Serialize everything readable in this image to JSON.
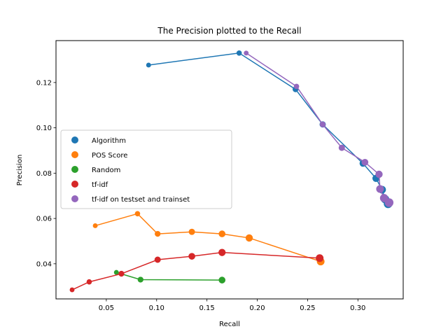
{
  "chart_data": {
    "type": "line",
    "title": "The Precision plotted to the Recall",
    "xlabel": "Recall",
    "ylabel": "Precision",
    "xlim": [
      0.0,
      0.345
    ],
    "ylim": [
      0.0245,
      0.1385
    ],
    "xticks": [
      0.05,
      0.1,
      0.15,
      0.2,
      0.25,
      0.3
    ],
    "xtick_labels": [
      "0.05",
      "0.10",
      "0.15",
      "0.20",
      "0.25",
      "0.30"
    ],
    "yticks": [
      0.04,
      0.06,
      0.08,
      0.1,
      0.12
    ],
    "ytick_labels": [
      "0.04",
      "0.06",
      "0.08",
      "0.10",
      "0.12"
    ],
    "grid": false,
    "legend_position": "center-left",
    "series": [
      {
        "name": "Algorithm",
        "color": "#1f77b4",
        "x": [
          0.092,
          0.182,
          0.238,
          0.265,
          0.305,
          0.318,
          0.324,
          0.327,
          0.33
        ],
        "y": [
          0.1277,
          0.133,
          0.117,
          0.1015,
          0.0843,
          0.0777,
          0.0727,
          0.0685,
          0.0665
        ],
        "sizes": [
          5,
          5.5,
          6,
          6.5,
          7,
          7.5,
          8,
          8.5,
          9
        ]
      },
      {
        "name": "POS Score",
        "color": "#ff7f0e",
        "x": [
          0.039,
          0.081,
          0.101,
          0.135,
          0.165,
          0.192,
          0.263
        ],
        "y": [
          0.0568,
          0.0621,
          0.0532,
          0.0541,
          0.0532,
          0.0514,
          0.041
        ],
        "sizes": [
          5,
          5.5,
          6,
          6.5,
          7,
          7.5,
          8
        ]
      },
      {
        "name": "Random",
        "color": "#2ca02c",
        "x": [
          0.06,
          0.084,
          0.165
        ],
        "y": [
          0.0362,
          0.033,
          0.0328
        ],
        "sizes": [
          5,
          6,
          7
        ]
      },
      {
        "name": "tf-idf",
        "color": "#d62728",
        "x": [
          0.016,
          0.033,
          0.065,
          0.101,
          0.135,
          0.165,
          0.262
        ],
        "y": [
          0.0285,
          0.032,
          0.0356,
          0.0418,
          0.0433,
          0.045,
          0.0425
        ],
        "sizes": [
          5,
          5.5,
          6,
          6.5,
          7,
          7.5,
          8
        ]
      },
      {
        "name": "tf-idf on testset and trainset",
        "color": "#9467bd",
        "x": [
          0.189,
          0.239,
          0.265,
          0.284,
          0.307,
          0.321,
          0.322,
          0.326,
          0.331
        ],
        "y": [
          0.133,
          0.1183,
          0.1015,
          0.0912,
          0.0848,
          0.0795,
          0.073,
          0.069,
          0.067
        ],
        "sizes": [
          5,
          5.5,
          6,
          6.5,
          7,
          7.5,
          8,
          8.5,
          9
        ]
      }
    ]
  }
}
